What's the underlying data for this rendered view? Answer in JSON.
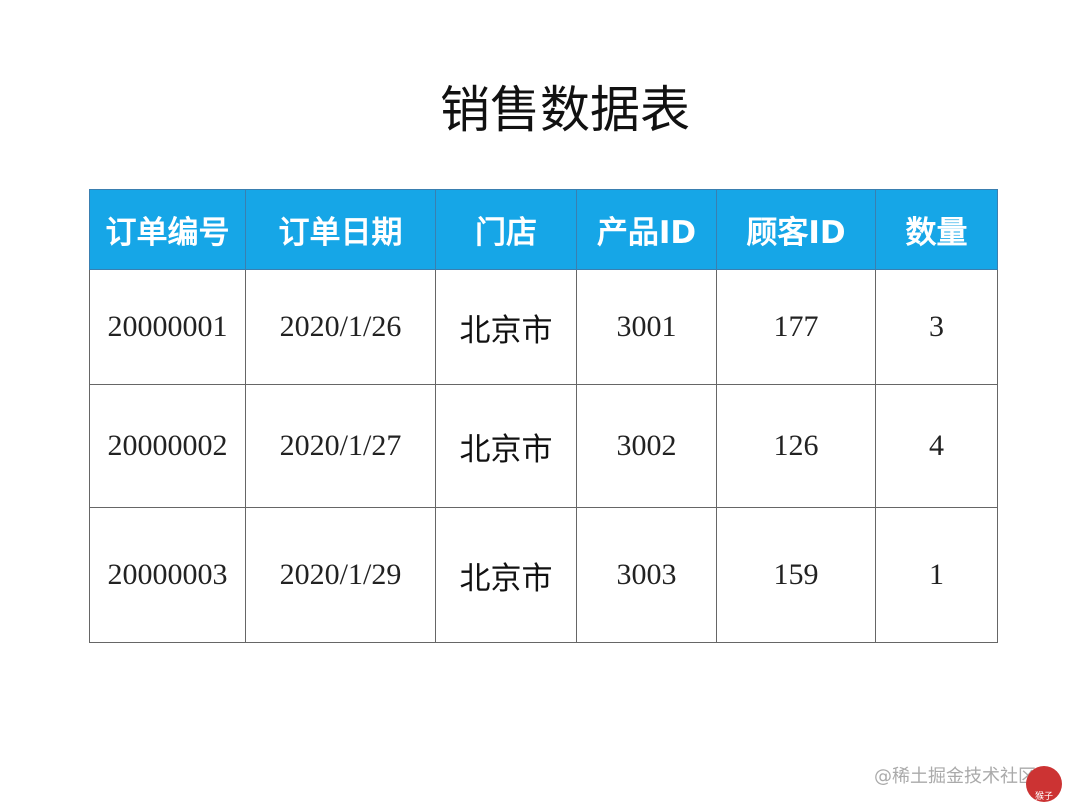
{
  "header": {
    "title": "销售数据表"
  },
  "table": {
    "columns": [
      "订单编号",
      "订单日期",
      "门店",
      "产品ID",
      "顾客ID",
      "数量"
    ],
    "rows": [
      [
        "20000001",
        "2020/1/26",
        "北京市",
        "3001",
        "177",
        "3"
      ],
      [
        "20000002",
        "2020/1/27",
        "北京市",
        "3002",
        "126",
        "4"
      ],
      [
        "20000003",
        "2020/1/29",
        "北京市",
        "3003",
        "159",
        "1"
      ]
    ]
  },
  "watermark": {
    "text": "@稀土掘金技术社区",
    "logo": "猴子"
  }
}
